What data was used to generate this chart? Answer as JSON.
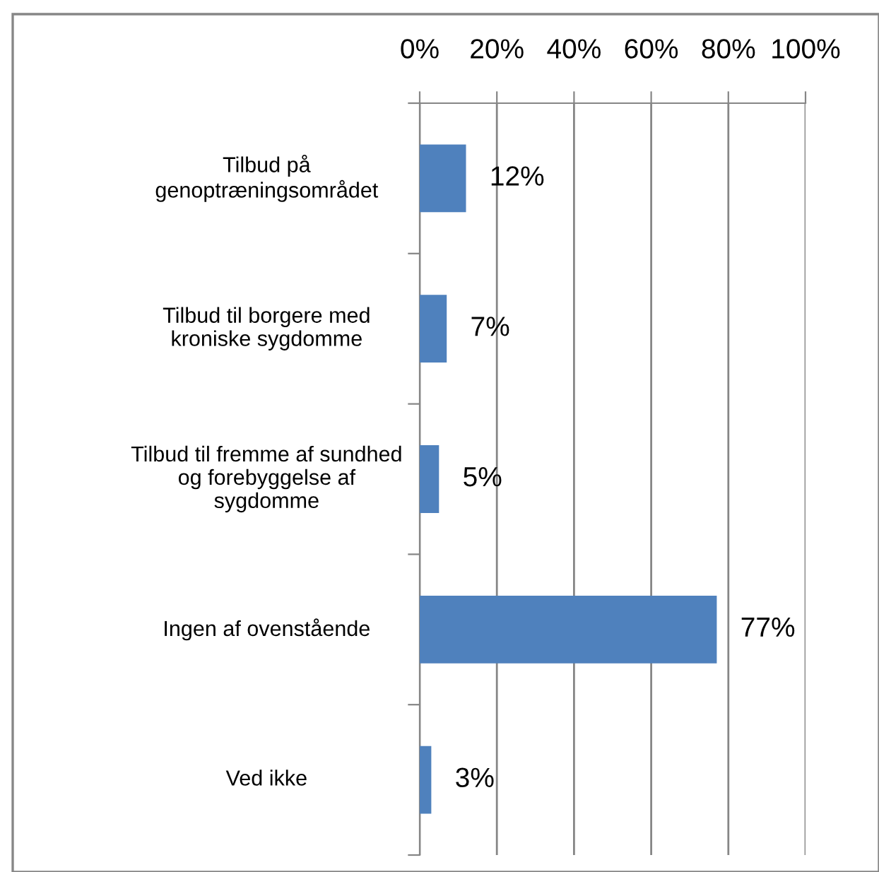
{
  "chart_data": {
    "type": "bar",
    "orientation": "horizontal",
    "categories": [
      "Tilbud på\ngenoptræningsområdet",
      "Tilbud til borgere med\nkroniske sygdomme",
      "Tilbud til fremme af sundhed\nog forebyggelse af\nsygdomme",
      "Ingen af ovenstående",
      "Ved ikke"
    ],
    "values": [
      12,
      7,
      5,
      77,
      3
    ],
    "value_labels": [
      "12%",
      "7%",
      "5%",
      "77%",
      "3%"
    ],
    "color": "#4f81bd",
    "xlim": [
      0,
      100
    ],
    "xticks": [
      {
        "value": 0,
        "label": "0%"
      },
      {
        "value": 20,
        "label": "20%"
      },
      {
        "value": 40,
        "label": "40%"
      },
      {
        "value": 60,
        "label": "60%"
      },
      {
        "value": 80,
        "label": "80%"
      },
      {
        "value": 100,
        "label": "100%"
      }
    ],
    "grid": "x"
  }
}
